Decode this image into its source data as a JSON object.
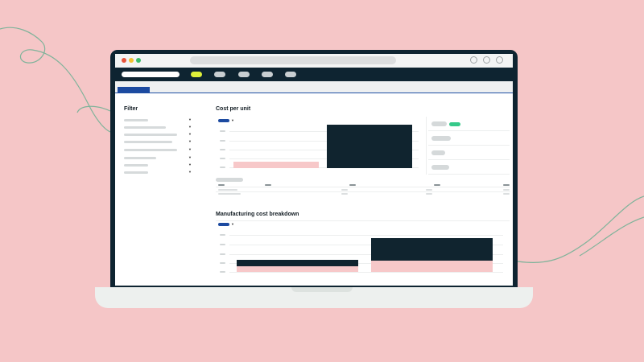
{
  "panels": {
    "filter_title": "Filter",
    "cost_per_unit_title": "Cost per unit",
    "breakdown_title": "Manufacturing cost breakdown"
  },
  "colors": {
    "background": "#f5c6c7",
    "laptop": "#0e2431",
    "accent_blue": "#1c4aa0",
    "accent_yellow": "#dff03a",
    "accent_green": "#36c98a",
    "bar_dark": "#10242f",
    "bar_pink": "#f7c8c9"
  },
  "icons": {
    "close": "window-close-dot",
    "minimize": "window-minimize-dot",
    "maximize": "window-maximize-dot",
    "controls": [
      "circle-control-icon",
      "circle-control-icon",
      "circle-control-icon"
    ],
    "dropdown": "caret-down-icon"
  },
  "nav": {
    "active_index": 0,
    "item_count": 5
  },
  "filters": {
    "row_count": 8
  }
}
